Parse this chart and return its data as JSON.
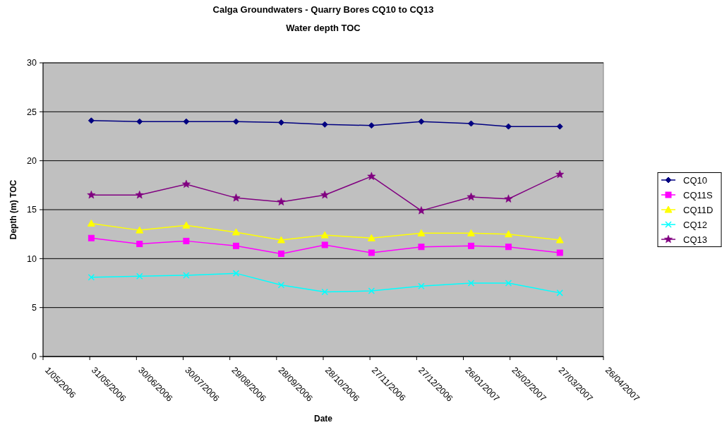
{
  "chart_data": {
    "type": "line",
    "title": "Calga Groundwaters - Quarry Bores CQ10 to CQ13",
    "subtitle": "Water depth TOC",
    "xlabel": "Date",
    "ylabel": "Depth (m) TOC",
    "x": [
      "2006-06-01",
      "2006-07-02",
      "2006-08-01",
      "2006-09-02",
      "2006-10-01",
      "2006-10-29",
      "2006-11-28",
      "2006-12-30",
      "2007-01-31",
      "2007-02-24",
      "2007-03-29"
    ],
    "series": [
      {
        "name": "CQ10",
        "color": "#000080",
        "marker": "diamond",
        "values": [
          24.1,
          24.0,
          24.0,
          24.0,
          23.9,
          23.7,
          23.6,
          24.0,
          23.8,
          23.5,
          23.5
        ]
      },
      {
        "name": "CQ11S",
        "color": "#ff00ff",
        "marker": "square",
        "values": [
          12.1,
          11.5,
          11.8,
          11.3,
          10.5,
          11.4,
          10.6,
          11.2,
          11.3,
          11.2,
          10.6
        ]
      },
      {
        "name": "CQ11D",
        "color": "#ffff00",
        "marker": "triangle",
        "values": [
          13.6,
          12.9,
          13.4,
          12.7,
          11.9,
          12.4,
          12.1,
          12.6,
          12.6,
          12.5,
          11.9
        ]
      },
      {
        "name": "CQ12",
        "color": "#00ffff",
        "marker": "cross",
        "values": [
          8.1,
          8.2,
          8.3,
          8.5,
          7.3,
          6.6,
          6.7,
          7.2,
          7.5,
          7.5,
          6.5
        ]
      },
      {
        "name": "CQ13",
        "color": "#800080",
        "marker": "star",
        "values": [
          16.5,
          16.5,
          17.6,
          16.2,
          15.8,
          16.5,
          18.4,
          14.9,
          16.3,
          16.1,
          18.6
        ]
      }
    ],
    "xlim": [
      "2006-05-01",
      "2007-04-26"
    ],
    "xticks": [
      {
        "value": "2006-05-01",
        "label": "1/05/2006"
      },
      {
        "value": "2006-05-31",
        "label": "31/05/2006"
      },
      {
        "value": "2006-06-30",
        "label": "30/06/2006"
      },
      {
        "value": "2006-07-30",
        "label": "30/07/2006"
      },
      {
        "value": "2006-08-29",
        "label": "29/08/2006"
      },
      {
        "value": "2006-09-28",
        "label": "28/09/2006"
      },
      {
        "value": "2006-10-28",
        "label": "28/10/2006"
      },
      {
        "value": "2006-11-27",
        "label": "27/11/2006"
      },
      {
        "value": "2006-12-27",
        "label": "27/12/2006"
      },
      {
        "value": "2007-01-26",
        "label": "26/01/2007"
      },
      {
        "value": "2007-02-25",
        "label": "25/02/2007"
      },
      {
        "value": "2007-03-27",
        "label": "27/03/2007"
      },
      {
        "value": "2007-04-26",
        "label": "26/04/2007"
      }
    ],
    "ylim": [
      0,
      30
    ],
    "yticks": [
      0,
      5,
      10,
      15,
      20,
      25,
      30
    ],
    "grid": "y",
    "legend": "right",
    "line_style": "solid"
  }
}
